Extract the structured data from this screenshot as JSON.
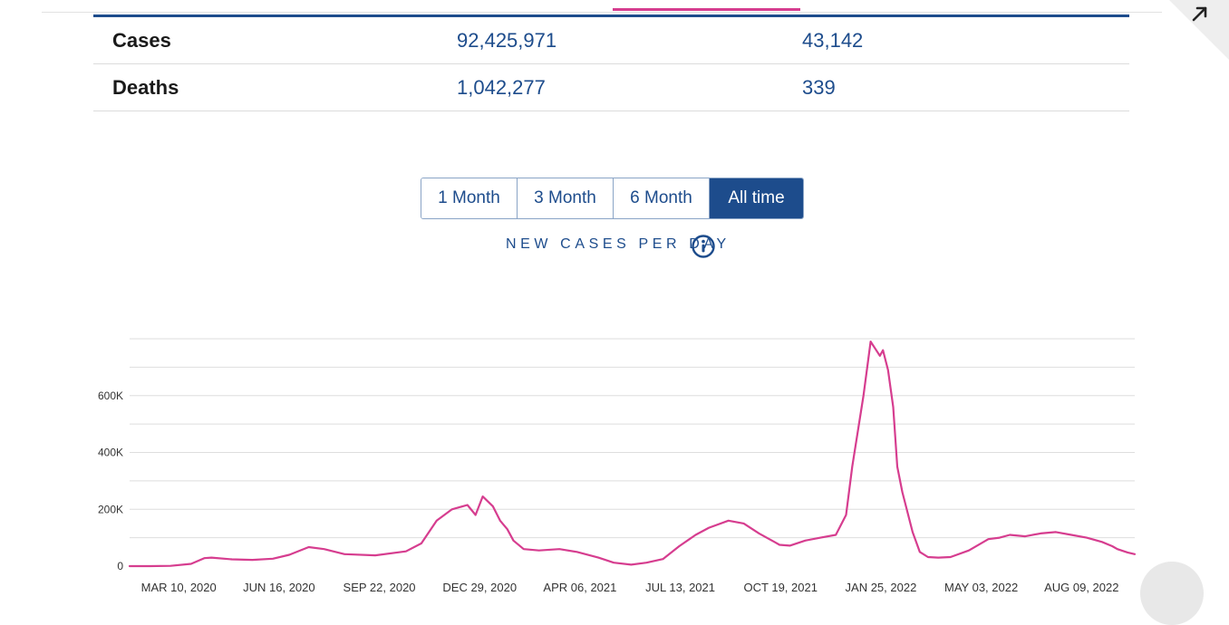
{
  "summary": {
    "rows": [
      {
        "label": "Cases",
        "total": "92,425,971",
        "recent": "43,142"
      },
      {
        "label": "Deaths",
        "total": "1,042,277",
        "recent": "339"
      }
    ]
  },
  "range_selector": {
    "options": [
      "1 Month",
      "3 Month",
      "6 Month",
      "All time"
    ],
    "selected": "All time"
  },
  "chart_title": "NEW CASES PER DAY",
  "icons": {
    "info": "info-icon",
    "expand": "expand-arrow-icon"
  },
  "colors": {
    "line": "#d63d8f",
    "accent": "#1d4c8c"
  },
  "chart_data": {
    "type": "line",
    "title": "NEW CASES PER DAY",
    "xlabel": "",
    "ylabel": "",
    "ylim": [
      0,
      800000
    ],
    "yticks": [
      0,
      200000,
      400000,
      600000
    ],
    "ytick_labels": [
      "0",
      "200K",
      "400K",
      "600K"
    ],
    "xlim": [
      "2020-01-22",
      "2022-10-12"
    ],
    "xtick_labels": [
      "MAR 10, 2020",
      "JUN 16, 2020",
      "SEP 22, 2020",
      "DEC 29, 2020",
      "APR 06, 2021",
      "JUL 13, 2021",
      "OCT 19, 2021",
      "JAN 25, 2022",
      "MAY 03, 2022",
      "AUG 09, 2022"
    ],
    "xtick_days": [
      48,
      146,
      244,
      342,
      440,
      538,
      636,
      734,
      832,
      930
    ],
    "grid": true,
    "series": [
      {
        "name": "New cases per day",
        "x_days": [
          0,
          20,
          40,
          60,
          73,
          80,
          100,
          120,
          140,
          156,
          175,
          190,
          210,
          240,
          270,
          285,
          300,
          315,
          330,
          338,
          345,
          355,
          362,
          369,
          375,
          385,
          400,
          420,
          437,
          458,
          473,
          490,
          505,
          521,
          537,
          553,
          566,
          585,
          600,
          615,
          625,
          630,
          635,
          645,
          660,
          675,
          690,
          700,
          706,
          717,
          724,
          733,
          736,
          741,
          746,
          750,
          755,
          765,
          772,
          780,
          790,
          802,
          820,
          839,
          850,
          860,
          875,
          890,
          905,
          920,
          935,
          950,
          960,
          965,
          975,
          982
        ],
        "values": [
          0,
          0,
          1000,
          8000,
          28000,
          30000,
          24000,
          22000,
          26000,
          40000,
          67000,
          60000,
          42000,
          38000,
          52000,
          80000,
          160000,
          200000,
          215000,
          180000,
          245000,
          210000,
          160000,
          130000,
          90000,
          60000,
          55000,
          60000,
          50000,
          30000,
          12000,
          5000,
          12000,
          25000,
          70000,
          110000,
          135000,
          160000,
          150000,
          115000,
          95000,
          85000,
          75000,
          72000,
          90000,
          100000,
          110000,
          180000,
          350000,
          600000,
          790000,
          740000,
          760000,
          690000,
          560000,
          350000,
          260000,
          120000,
          50000,
          32000,
          30000,
          32000,
          55000,
          95000,
          100000,
          110000,
          105000,
          115000,
          120000,
          110000,
          100000,
          85000,
          70000,
          60000,
          48000,
          42000
        ]
      }
    ]
  }
}
